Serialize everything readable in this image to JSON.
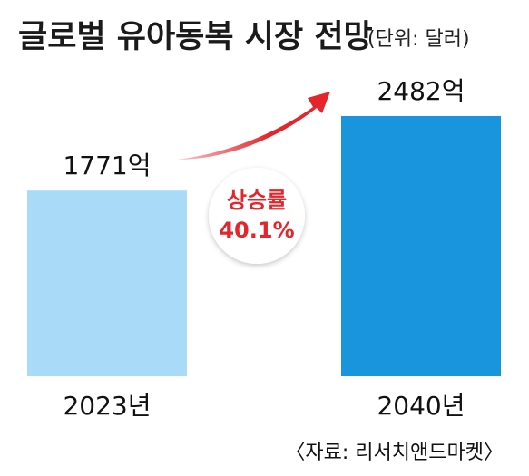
{
  "title": "글로벌 유아동복 시장 전망",
  "unit": "(단위: 달러)",
  "source": "〈자료: 리서치앤드마켓〉",
  "colors": {
    "bar_first": "#a9dbf8",
    "bar_second": "#1895dc",
    "arrow": "#e3262c",
    "badge_text": "#e3262c",
    "background": "#ffffff"
  },
  "badge": {
    "label": "상승률",
    "value": "40.1%"
  },
  "chart_data": {
    "type": "bar",
    "title": "글로벌 유아동복 시장 전망",
    "unit": "(단위: 달러)",
    "categories": [
      "2023년",
      "2040년"
    ],
    "values": [
      1771,
      2482
    ],
    "value_labels": [
      "1771억",
      "2482억"
    ],
    "xlabel": "",
    "ylabel": "",
    "grid": false,
    "annotations": [
      "상승률",
      "40.1%"
    ]
  }
}
